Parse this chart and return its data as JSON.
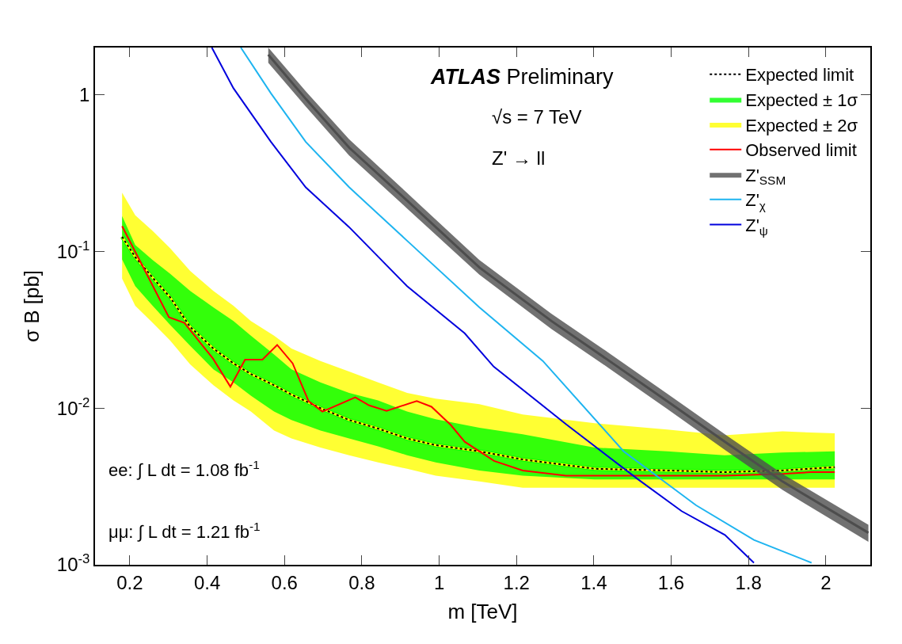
{
  "chart_data": {
    "type": "line",
    "xlabel": "m [TeV]",
    "ylabel": "σ B [pb]",
    "log": "y",
    "xlim": [
      0.11,
      2.115
    ],
    "xticks": [
      0.2,
      0.4,
      0.6,
      0.8,
      1,
      1.2,
      1.4,
      1.6,
      1.8,
      2
    ],
    "ylim": [
      0.001,
      2
    ],
    "yticks": [
      {
        "value": 0.001,
        "label": "10$^{-3}$"
      },
      {
        "value": 0.01,
        "label": "10$^{-2}$"
      },
      {
        "value": 0.1,
        "label": "10$^{-1}$"
      },
      1
    ],
    "legend": "top right",
    "x": [
      0.18,
      0.214,
      0.259,
      0.304,
      0.356,
      0.416,
      0.468,
      0.513,
      0.573,
      0.618,
      0.693,
      0.767,
      0.842,
      0.917,
      0.991,
      1.104,
      1.216,
      1.402,
      1.59,
      1.738,
      1.888,
      2.023
    ],
    "series": [
      {
        "name": "Expected limit",
        "color": "#000000",
        "line_style": "dotted",
        "values": [
          0.124,
          0.092,
          0.068,
          0.051,
          0.033,
          0.024,
          0.0193,
          0.0165,
          0.014,
          0.0122,
          0.01,
          0.0084,
          0.0074,
          0.0064,
          0.0058,
          0.0053,
          0.0047,
          0.0041,
          0.004,
          0.0039,
          0.004,
          0.0042
        ]
      },
      {
        "name": "Expected ± 1σ",
        "color": "#00ff00",
        "values": [
          0.124,
          0.092,
          0.068,
          0.051,
          0.033,
          0.024,
          0.0193,
          0.0165,
          0.014,
          0.0122,
          0.01,
          0.0084,
          0.0074,
          0.0064,
          0.0058,
          0.0053,
          0.0047,
          0.0041,
          0.004,
          0.0039,
          0.004,
          0.0042
        ],
        "lower": [
          0.089,
          0.06,
          0.045,
          0.034,
          0.025,
          0.0177,
          0.0146,
          0.012,
          0.0095,
          0.0084,
          0.0072,
          0.0064,
          0.0057,
          0.005,
          0.0045,
          0.004,
          0.0037,
          0.0035,
          0.0035,
          0.0035,
          0.0035,
          0.0035
        ],
        "upper": [
          0.168,
          0.11,
          0.088,
          0.072,
          0.056,
          0.044,
          0.036,
          0.029,
          0.022,
          0.0177,
          0.0146,
          0.0125,
          0.0112,
          0.0095,
          0.0085,
          0.0075,
          0.0068,
          0.0056,
          0.0053,
          0.005,
          0.0052,
          0.0053
        ]
      },
      {
        "name": "Expected ± 2σ",
        "color": "#ffff00",
        "values": [
          0.124,
          0.092,
          0.068,
          0.051,
          0.033,
          0.024,
          0.0193,
          0.0165,
          0.014,
          0.0122,
          0.01,
          0.0084,
          0.0074,
          0.0064,
          0.0058,
          0.0053,
          0.0047,
          0.0041,
          0.004,
          0.0039,
          0.004,
          0.0042
        ],
        "lower": [
          0.067,
          0.045,
          0.035,
          0.027,
          0.019,
          0.014,
          0.0112,
          0.0095,
          0.0072,
          0.0064,
          0.0056,
          0.005,
          0.0045,
          0.0041,
          0.0037,
          0.0034,
          0.0031,
          0.0031,
          0.0031,
          0.0031,
          0.0031,
          0.0031
        ],
        "upper": [
          0.237,
          0.17,
          0.135,
          0.105,
          0.075,
          0.056,
          0.045,
          0.036,
          0.029,
          0.024,
          0.02,
          0.0171,
          0.0146,
          0.0125,
          0.0115,
          0.0106,
          0.0091,
          0.008,
          0.0073,
          0.0067,
          0.0071,
          0.0069
        ]
      },
      {
        "name": "Observed limit",
        "color": "#ff0000",
        "line_style": "solid",
        "x": [
          0.18,
          0.301,
          0.341,
          0.415,
          0.46,
          0.498,
          0.543,
          0.581,
          0.621,
          0.662,
          0.698,
          0.783,
          0.819,
          0.864,
          0.942,
          0.98,
          1.03,
          1.066,
          1.142,
          1.216,
          1.328,
          1.738,
          1.888,
          1.962,
          2.023
        ],
        "values": [
          0.145,
          0.038,
          0.035,
          0.0207,
          0.0137,
          0.0204,
          0.0204,
          0.0253,
          0.0193,
          0.0111,
          0.0095,
          0.0117,
          0.0104,
          0.0096,
          0.0111,
          0.0102,
          0.0078,
          0.0061,
          0.0046,
          0.004,
          0.0037,
          0.0037,
          0.0038,
          0.0039,
          0.0039
        ]
      },
      {
        "name": "Z'$_{SSM}$",
        "color": "#4d4d4d",
        "line_style": "solid",
        "x": [
          0.558,
          0.655,
          0.767,
          0.917,
          1.104,
          1.29,
          1.44,
          1.589,
          1.739,
          1.888,
          2.11
        ],
        "values": [
          1.8,
          0.94,
          0.46,
          0.211,
          0.079,
          0.036,
          0.02,
          0.0111,
          0.0061,
          0.0034,
          0.0016
        ],
        "lower": [
          1.6,
          0.84,
          0.41,
          0.188,
          0.071,
          0.032,
          0.0179,
          0.0099,
          0.0054,
          0.003,
          0.0014
        ],
        "upper": [
          2.0,
          1.05,
          0.52,
          0.236,
          0.088,
          0.04,
          0.0224,
          0.0124,
          0.0068,
          0.0038,
          0.0018
        ]
      },
      {
        "name": "Z'$_{χ}$",
        "color": "#1eb4f0",
        "line_style": "solid",
        "x": [
          0.487,
          0.565,
          0.655,
          0.767,
          0.917,
          1.104,
          1.268,
          1.477,
          1.664,
          1.814,
          1.963
        ],
        "values": [
          2.0,
          1.02,
          0.5,
          0.257,
          0.117,
          0.044,
          0.02,
          0.0053,
          0.0024,
          0.00144,
          0.00103
        ]
      },
      {
        "name": "Z'$_{ψ}$",
        "color": "#0000dd",
        "line_style": "solid",
        "x": [
          0.412,
          0.468,
          0.565,
          0.655,
          0.767,
          0.917,
          1.066,
          1.141,
          1.328,
          1.515,
          1.627,
          1.739,
          1.814
        ],
        "values": [
          2.0,
          1.1,
          0.5,
          0.256,
          0.143,
          0.06,
          0.03,
          0.0184,
          0.0079,
          0.0035,
          0.0022,
          0.00155,
          0.00103
        ]
      }
    ],
    "annotations": [
      "ATLAS Preliminary",
      "√s = 7 TeV",
      "Z' → ll",
      "ee: ∫ L dt = 1.08 fb$^{-1}$",
      "μμ: ∫ L dt = 1.21 fb$^{-1}$"
    ]
  }
}
